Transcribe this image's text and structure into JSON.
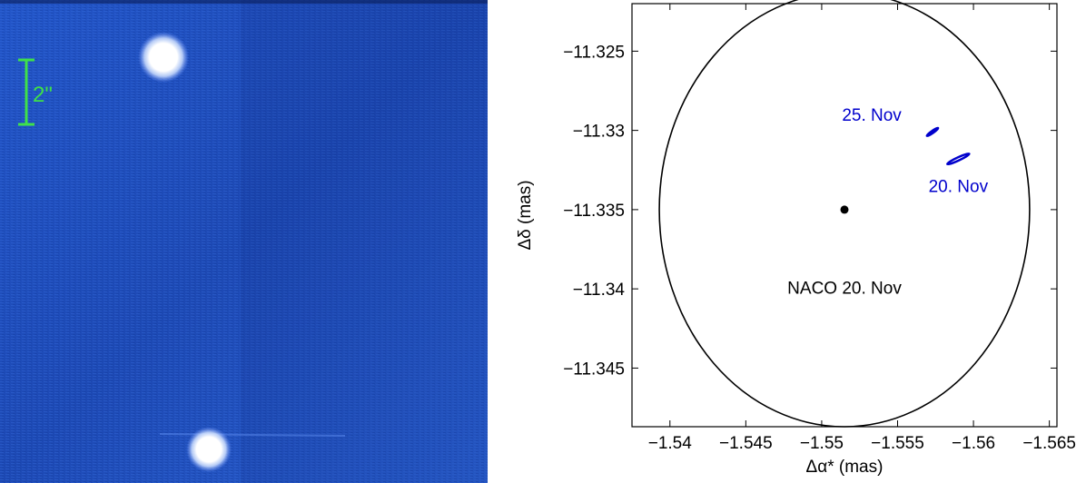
{
  "image_panel": {
    "scale_bar_label": "2\"",
    "colors": {
      "background": "#1f4fc0",
      "scale_bar": "#3fe04a",
      "star": "#ffffff"
    }
  },
  "chart_data": {
    "type": "scatter",
    "xlabel": "Δα* (mas)",
    "ylabel": "Δδ (mas)",
    "xlim": [
      -1.5375,
      -1.5655
    ],
    "ylim": [
      -11.3487,
      -11.322
    ],
    "x_direction": "reversed",
    "grid": false,
    "x_ticks": [
      -1.54,
      -1.545,
      -1.55,
      -1.555,
      -1.56,
      -1.565
    ],
    "x_tick_labels": [
      "−1.54",
      "−1.545",
      "−1.55",
      "−1.555",
      "−1.56",
      "−1.565"
    ],
    "y_ticks": [
      -11.325,
      -11.33,
      -11.335,
      -11.34,
      -11.345
    ],
    "y_tick_labels": [
      "−11.325",
      "−11.33",
      "−11.335",
      "−11.34",
      "−11.345"
    ],
    "ellipses": [
      {
        "name": "NACO 20. Nov",
        "center": [
          -1.5515,
          -11.335
        ],
        "rx": 0.0122,
        "ry": 0.0137,
        "angle": 0,
        "color": "#000000"
      },
      {
        "name": "25. Nov",
        "center": [
          -1.5573,
          -11.3301
        ],
        "rx": 0.00045,
        "ry": 7e-05,
        "angle": -35,
        "color": "#0000cc"
      },
      {
        "name": "20. Nov",
        "center": [
          -1.559,
          -11.3318
        ],
        "rx": 0.0008,
        "ry": 0.0001,
        "angle": -25,
        "color": "#0000cc"
      }
    ],
    "points": [
      {
        "x": -1.5515,
        "y": -11.335,
        "color": "#000000"
      }
    ],
    "annotations": [
      {
        "text": "25. Nov",
        "x": -1.5533,
        "y": -11.3294,
        "color": "#0000cc"
      },
      {
        "text": "20. Nov",
        "x": -1.559,
        "y": -11.3339,
        "color": "#0000cc"
      },
      {
        "text": "NACO 20. Nov",
        "x": -1.5515,
        "y": -11.3403,
        "color": "#000000"
      }
    ]
  }
}
